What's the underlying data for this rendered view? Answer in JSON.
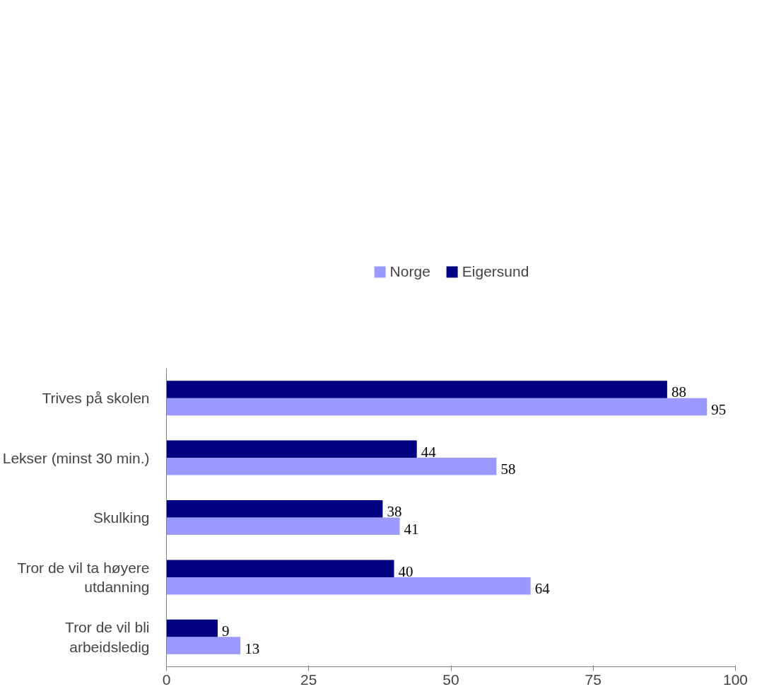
{
  "chart_data": {
    "type": "bar",
    "orientation": "horizontal",
    "categories": [
      "Trives på skolen",
      "Lekser (minst 30 min.)",
      "Skulking",
      "Tror de vil ta høyere utdanning",
      "Tror de vil bli arbeidsledig"
    ],
    "series": [
      {
        "name": "Norge",
        "color": "#9999ff",
        "values": [
          95,
          58,
          41,
          64,
          13
        ]
      },
      {
        "name": "Eigersund",
        "color": "#000080",
        "values": [
          88,
          44,
          38,
          40,
          9
        ]
      }
    ],
    "xlim": [
      0,
      100
    ],
    "xticks": [
      0,
      25,
      50,
      75,
      100
    ],
    "data_labels": true,
    "legend": "top",
    "grid": false
  }
}
